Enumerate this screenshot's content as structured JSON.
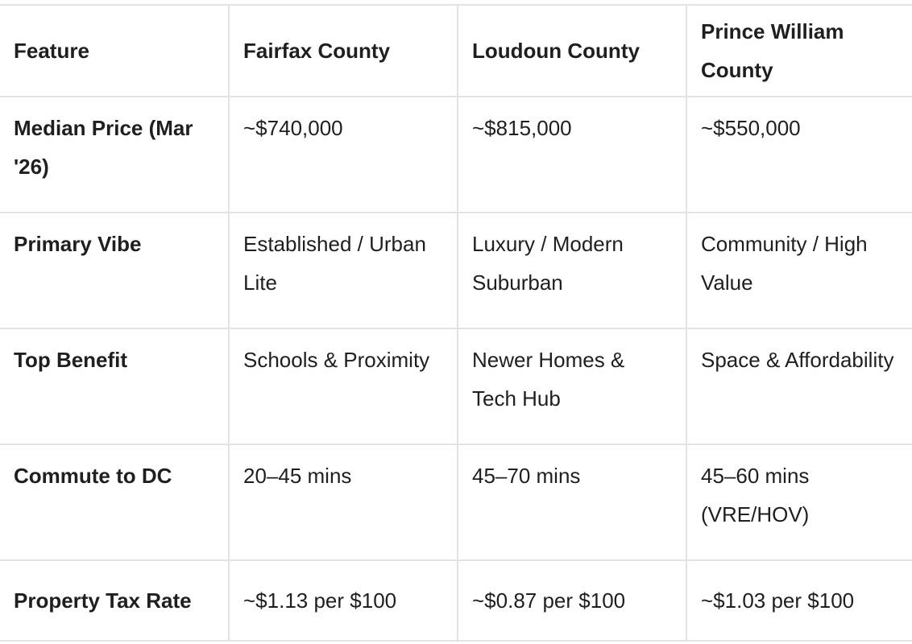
{
  "table": {
    "headers": [
      "Feature",
      "Fairfax County",
      "Loudoun County",
      "Prince William County"
    ],
    "rows": [
      {
        "feature": "Median Price (Mar '26)",
        "fairfax": "~$740,000",
        "loudoun": "~$815,000",
        "prince_william": "~$550,000"
      },
      {
        "feature": "Primary Vibe",
        "fairfax": "Established / Urban Lite",
        "loudoun": "Luxury / Modern Suburban",
        "prince_william": "Community / High Value"
      },
      {
        "feature": "Top Benefit",
        "fairfax": "Schools & Proximity",
        "loudoun": "Newer Homes & Tech Hub",
        "prince_william": "Space & Affordability"
      },
      {
        "feature": "Commute to DC",
        "fairfax": "20–45 mins",
        "loudoun": "45–70 mins",
        "prince_william": "45–60 mins (VRE/HOV)"
      },
      {
        "feature": "Property Tax Rate",
        "fairfax": "~$1.13 per $100",
        "loudoun": "~$0.87 per $100",
        "prince_william": "~$1.03 per $100"
      }
    ]
  }
}
